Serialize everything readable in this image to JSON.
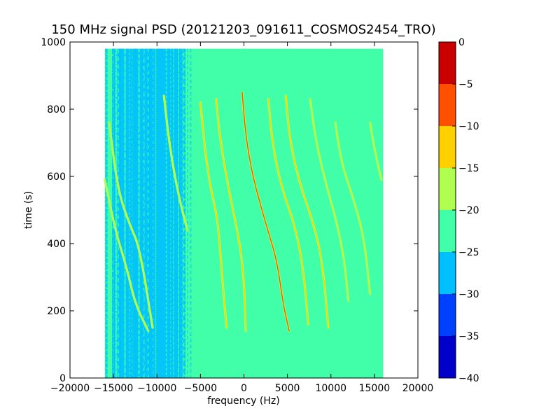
{
  "chart_data": {
    "type": "heatmap",
    "title": "150 MHz signal PSD (20121203_091611_COSMOS2454_TRO)",
    "xlabel": "frequency (Hz)",
    "ylabel": "time (s)",
    "xlim": [
      -20000,
      20000
    ],
    "ylim": [
      0,
      1000
    ],
    "x_ticks": [
      -20000,
      -15000,
      -10000,
      -5000,
      0,
      5000,
      10000,
      15000,
      20000
    ],
    "x_tick_labels": [
      "−20000",
      "−15000",
      "−10000",
      "−5000",
      "0",
      "5000",
      "10000",
      "15000",
      "20000"
    ],
    "y_ticks": [
      0,
      200,
      400,
      600,
      800,
      1000
    ],
    "y_tick_labels": [
      "0",
      "200",
      "400",
      "600",
      "800",
      "1000"
    ],
    "data_extent": {
      "x": [
        -16000,
        16000
      ],
      "y": [
        0,
        980
      ]
    },
    "background_level": -22.5,
    "noise_band": {
      "x": [
        -15000,
        -7000
      ],
      "level": -27.5
    },
    "colorbar": {
      "levels": [
        -40,
        -35,
        -30,
        -25,
        -20,
        -15,
        -10,
        -5,
        0
      ],
      "tick_labels": [
        "−40",
        "−35",
        "−30",
        "−25",
        "−20",
        "−15",
        "−10",
        "−5",
        "0"
      ],
      "colors": [
        "#0000c8",
        "#0040ff",
        "#00c0ff",
        "#40ffa8",
        "#b0ff50",
        "#ffd000",
        "#ff5000",
        "#c80000"
      ]
    },
    "traces": [
      {
        "points": [
          [
            -16000,
            590
          ],
          [
            -14800,
            440
          ],
          [
            -13500,
            330
          ],
          [
            -12500,
            220
          ],
          [
            -11000,
            140
          ]
        ],
        "level": -17.5
      },
      {
        "points": [
          [
            -15500,
            760
          ],
          [
            -14500,
            560
          ],
          [
            -13200,
            460
          ],
          [
            -12000,
            390
          ],
          [
            -10500,
            150
          ]
        ],
        "level": -17.5
      },
      {
        "points": [
          [
            -9200,
            840
          ],
          [
            -8500,
            680
          ],
          [
            -7500,
            540
          ],
          [
            -6500,
            440
          ]
        ],
        "level": -17.5
      },
      {
        "points": [
          [
            -5000,
            820
          ],
          [
            -4500,
            680
          ],
          [
            -3800,
            560
          ],
          [
            -3000,
            470
          ],
          [
            -2500,
            300
          ],
          [
            -2000,
            150
          ]
        ],
        "level": -12.5
      },
      {
        "points": [
          [
            -3200,
            830
          ],
          [
            -2700,
            700
          ],
          [
            -1600,
            540
          ],
          [
            -600,
            420
          ],
          [
            0,
            300
          ],
          [
            200,
            140
          ]
        ],
        "level": -12.5
      },
      {
        "points": [
          [
            -200,
            850
          ],
          [
            200,
            720
          ],
          [
            1000,
            600
          ],
          [
            2500,
            460
          ],
          [
            3800,
            350
          ],
          [
            4500,
            220
          ],
          [
            5200,
            140
          ]
        ],
        "level": -7.5
      },
      {
        "points": [
          [
            2800,
            830
          ],
          [
            3300,
            690
          ],
          [
            4400,
            560
          ],
          [
            5900,
            450
          ],
          [
            6800,
            330
          ],
          [
            7400,
            160
          ]
        ],
        "level": -12.5
      },
      {
        "points": [
          [
            4800,
            840
          ],
          [
            5300,
            700
          ],
          [
            6500,
            570
          ],
          [
            8000,
            460
          ],
          [
            9000,
            350
          ],
          [
            9700,
            150
          ]
        ],
        "level": -12.5
      },
      {
        "points": [
          [
            7600,
            830
          ],
          [
            8300,
            700
          ],
          [
            9400,
            580
          ],
          [
            10500,
            480
          ],
          [
            11500,
            360
          ],
          [
            12000,
            230
          ]
        ],
        "level": -17.5
      },
      {
        "points": [
          [
            10500,
            760
          ],
          [
            11200,
            640
          ],
          [
            12500,
            540
          ],
          [
            13800,
            420
          ],
          [
            14500,
            250
          ]
        ],
        "level": -17.5
      },
      {
        "points": [
          [
            14500,
            760
          ],
          [
            15000,
            680
          ],
          [
            15800,
            590
          ]
        ],
        "level": -17.5
      }
    ]
  }
}
